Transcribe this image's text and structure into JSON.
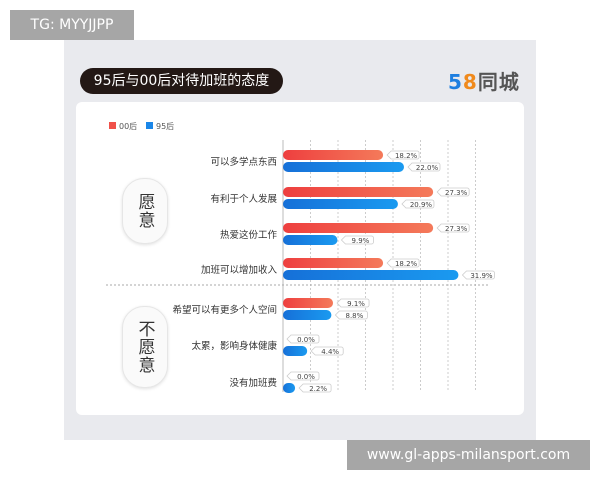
{
  "watermark_top": "TG: MYYJJPP",
  "watermark_bottom": "www.gl-apps-milansport.com",
  "logo": {
    "digit1": "5",
    "digit2": "8",
    "text": "同城"
  },
  "chart_data": {
    "type": "bar",
    "orientation": "horizontal",
    "title": "95后与00后对待加班的态度",
    "categories": [
      "可以多学点东西",
      "有利于个人发展",
      "热爱这份工作",
      "加班可以增加收入",
      "希望可以有更多个人空间",
      "太累，影响身体健康",
      "没有加班费"
    ],
    "groups": [
      {
        "label": "愿意",
        "categories": [
          "可以多学点东西",
          "有利于个人发展",
          "热爱这份工作",
          "加班可以增加收入"
        ]
      },
      {
        "label": "不愿意",
        "categories": [
          "希望可以有更多个人空间",
          "太累，影响身体健康",
          "没有加班费"
        ]
      }
    ],
    "series": [
      {
        "name": "00后",
        "color": "#f0514a",
        "values": [
          18.2,
          27.3,
          27.3,
          18.2,
          9.1,
          0.0,
          0.0
        ],
        "labels": [
          "18.2%",
          "27.3%",
          "27.3%",
          "18.2%",
          "9.1%",
          "0.0%",
          "0.0%"
        ]
      },
      {
        "name": "95后",
        "color": "#1a86e8",
        "values": [
          22.0,
          20.9,
          9.9,
          31.9,
          8.8,
          4.4,
          2.2
        ],
        "labels": [
          "22.0%",
          "20.9%",
          "9.9%",
          "31.9%",
          "8.8%",
          "4.4%",
          "2.2%"
        ]
      }
    ],
    "xlim": [
      0,
      36
    ],
    "grid": true,
    "legend": "top-left",
    "unit": "%"
  }
}
